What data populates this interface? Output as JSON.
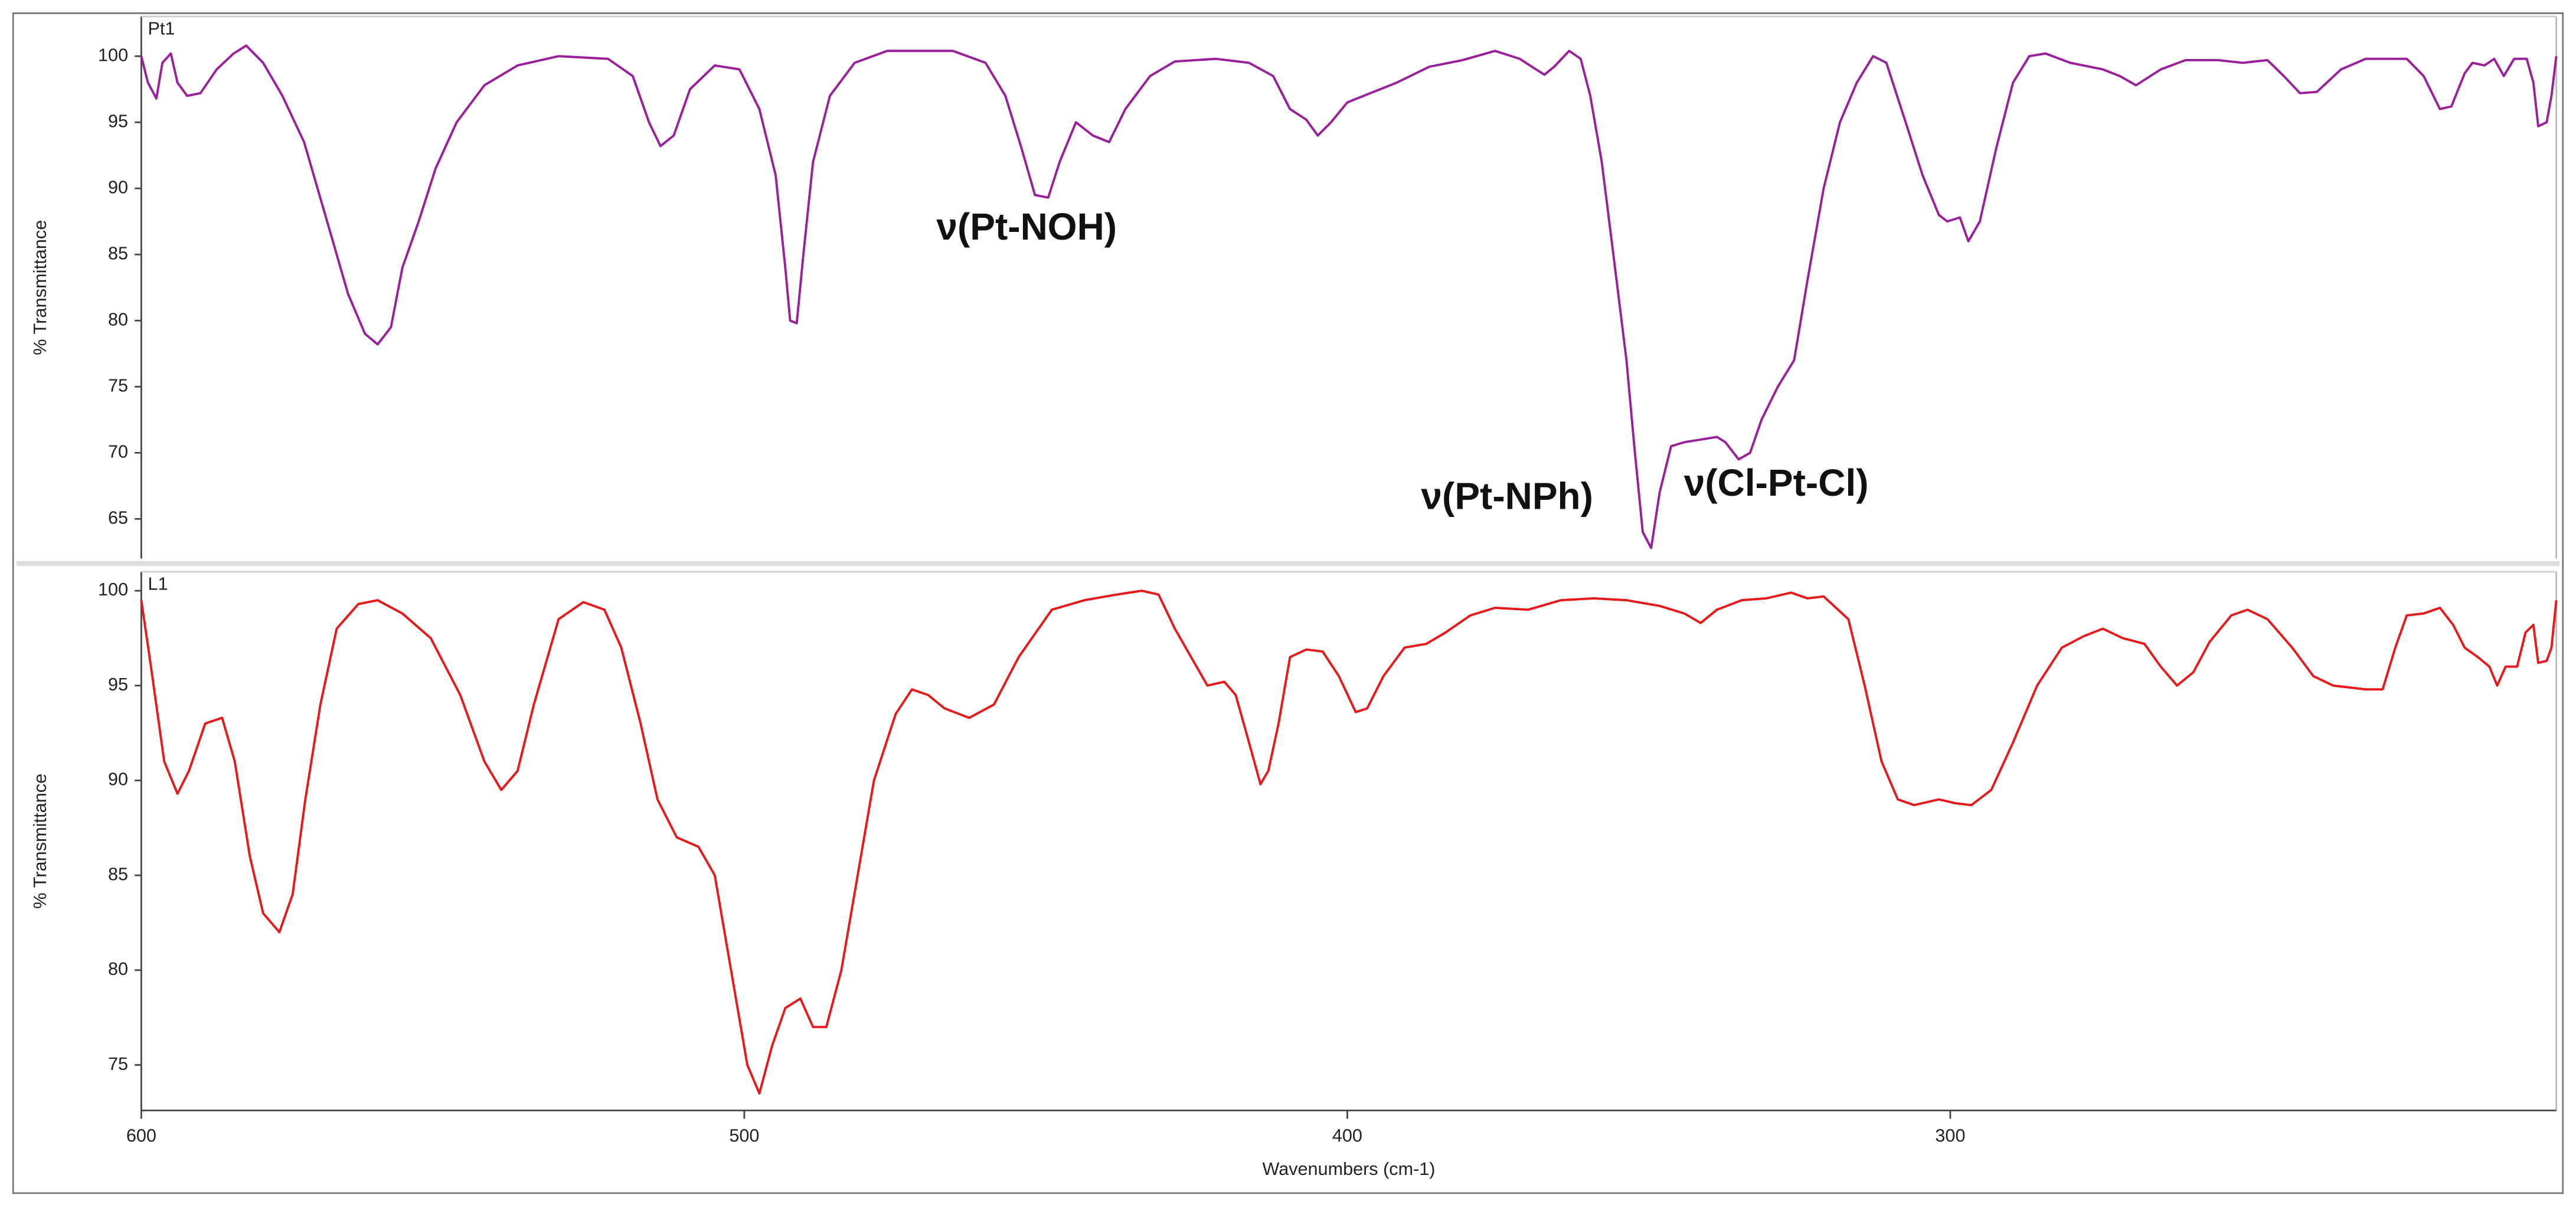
{
  "chart_data": [
    {
      "type": "line",
      "ylabel": "% Transmittance",
      "xlim": [
        600,
        199.5
      ],
      "ylim": [
        62,
        103
      ],
      "yticks": [
        65,
        70,
        75,
        80,
        85,
        90,
        95,
        100
      ],
      "annotations": [
        "ν(Pt-NOH)",
        "ν(Pt-NPh)",
        "ν(Cl-Pt-Cl)"
      ],
      "x": [
        600,
        598.9,
        597.5,
        596.5,
        595.1,
        594.0,
        592.4,
        590.2,
        587.5,
        584.7,
        582.6,
        579.8,
        576.6,
        573.0,
        569.5,
        565.7,
        562.9,
        560.8,
        558.6,
        556.7,
        554.0,
        551.2,
        547.7,
        543.1,
        537.6,
        530.8,
        522.6,
        518.5,
        515.8,
        513.9,
        511.7,
        509.0,
        504.9,
        500.8,
        497.5,
        494.8,
        493.2,
        492.4,
        491.3,
        490.2,
        488.6,
        485.8,
        481.7,
        476.3,
        465.4,
        460.0,
        456.7,
        454.0,
        451.8,
        449.6,
        447.7,
        445.0,
        442.2,
        439.5,
        436.8,
        432.7,
        428.6,
        421.8,
        416.3,
        412.3,
        409.5,
        406.8,
        404.9,
        402.7,
        400.0,
        397.3,
        391.8,
        386.4,
        380.9,
        375.5,
        371.4,
        368.7,
        367.3,
        365.7,
        363.2,
        361.3,
        359.7,
        357.8,
        355.6,
        353.7,
        352.3,
        351.0,
        349.6,
        348.2,
        346.3,
        344.1,
        341.4,
        338.7,
        337.3,
        335.1,
        333.2,
        331.3,
        328.6,
        325.9,
        323.7,
        321.0,
        318.3,
        315.5,
        312.8,
        310.6,
        307.4,
        304.6,
        301.9,
        300.5,
        298.4,
        297.0,
        295.1,
        292.4,
        289.6,
        286.9,
        284.2,
        280.1,
        274.7,
        271.9,
        269.2,
        265.1,
        261.0,
        255.6,
        251.5,
        247.4,
        244.7,
        242.0,
        239.2,
        235.2,
        231.1,
        224.3,
        221.5,
        218.8,
        216.9,
        214.7,
        213.4,
        211.4,
        209.8,
        208.2,
        206.5,
        204.4,
        203.3,
        202.5,
        201.1,
        200.3,
        199.5
      ],
      "series": [
        {
          "name": "Pt1",
          "color": "#9a1f9a",
          "values": [
            100,
            98,
            96.8,
            99.5,
            100.2,
            98,
            97,
            97.2,
            99,
            100.2,
            100.8,
            99.5,
            97,
            93.5,
            88,
            82,
            79,
            78.2,
            79.5,
            84,
            87.5,
            91.5,
            95,
            97.8,
            99.3,
            100,
            99.8,
            98.5,
            95,
            93.2,
            94,
            97.5,
            99.3,
            99,
            96,
            91,
            84,
            80,
            79.8,
            85,
            92,
            97,
            99.5,
            100.4,
            100.4,
            99.5,
            97,
            93,
            89.5,
            89.3,
            92,
            95,
            94,
            93.5,
            96,
            98.5,
            99.6,
            99.8,
            99.5,
            98.5,
            96,
            95.2,
            94,
            95,
            96.5,
            97,
            98,
            99.2,
            99.7,
            100.4,
            99.8,
            99,
            98.6,
            99.2,
            100.4,
            99.8,
            97,
            92,
            84,
            77,
            70,
            64,
            62.8,
            67,
            70.5,
            70.8,
            71,
            71.2,
            70.8,
            69.5,
            70,
            72.5,
            75,
            77,
            83,
            90,
            95,
            98,
            100,
            99.5,
            95,
            91,
            88,
            87.5,
            87.8,
            86,
            87.5,
            93,
            98,
            100,
            100.2,
            99.5,
            99,
            98.5,
            97.8,
            99,
            99.7,
            99.7,
            99.5,
            99.7,
            98.5,
            97.2,
            97.3,
            99,
            99.8,
            99.8,
            98.5,
            96,
            96.2,
            98.7,
            99.5,
            99.3,
            99.8,
            98.5,
            99.8,
            99.8,
            98,
            94.7,
            95,
            97,
            100
          ]
        }
      ]
    },
    {
      "type": "line",
      "ylabel": "% Transmittance",
      "xlabel": "Wavenumbers (cm-1)",
      "xlim": [
        600,
        199.5
      ],
      "ylim": [
        72.6,
        101
      ],
      "xticks": [
        600,
        500,
        400,
        300
      ],
      "yticks": [
        75,
        80,
        85,
        90,
        95,
        100
      ],
      "x": [
        600,
        598.4,
        596.2,
        594.0,
        592.1,
        589.4,
        586.6,
        584.5,
        582.0,
        579.8,
        577.1,
        574.9,
        572.8,
        570.3,
        567.6,
        564.0,
        560.8,
        556.7,
        552.0,
        547.1,
        543.1,
        540.3,
        537.6,
        534.9,
        530.8,
        526.7,
        523.2,
        520.4,
        517.2,
        514.4,
        511.2,
        507.6,
        504.9,
        502.2,
        499.5,
        497.5,
        495.4,
        493.2,
        490.7,
        488.6,
        486.4,
        483.9,
        481.2,
        478.5,
        474.9,
        472.2,
        469.5,
        466.8,
        462.7,
        458.6,
        454.5,
        449.0,
        443.6,
        438.2,
        434.1,
        431.3,
        428.6,
        425.9,
        423.2,
        420.4,
        418.5,
        416.3,
        414.4,
        413.1,
        411.4,
        409.5,
        406.8,
        404.1,
        401.4,
        398.6,
        396.7,
        394.0,
        390.5,
        386.9,
        383.7,
        379.6,
        375.5,
        370.0,
        364.6,
        359.1,
        353.7,
        348.2,
        344.1,
        341.4,
        338.7,
        334.6,
        330.5,
        326.4,
        323.7,
        321.0,
        316.9,
        314.2,
        311.4,
        308.7,
        306.0,
        301.9,
        299.2,
        296.5,
        293.2,
        289.6,
        285.6,
        281.5,
        277.9,
        274.7,
        271.4,
        267.8,
        265.1,
        262.4,
        259.7,
        257.0,
        253.4,
        250.7,
        247.4,
        243.3,
        239.8,
        236.5,
        231.1,
        228.3,
        226.2,
        224.3,
        221.5,
        218.8,
        216.6,
        214.7,
        212.5,
        210.6,
        209.3,
        207.9,
        206.0,
        204.6,
        203.3,
        202.5,
        201.1,
        200.3,
        199.5
      ],
      "series": [
        {
          "name": "L1",
          "color": "#e8191b",
          "values": [
            99.5,
            96,
            91,
            89.3,
            90.5,
            93,
            93.3,
            91,
            86,
            83,
            82,
            84,
            89,
            94,
            98,
            99.3,
            99.5,
            98.8,
            97.5,
            94.5,
            91,
            89.5,
            90.5,
            94,
            98.5,
            99.4,
            99,
            97,
            93,
            89,
            87,
            86.5,
            85,
            80,
            75,
            73.5,
            76,
            78,
            78.5,
            77,
            77,
            80,
            85,
            90,
            93.5,
            94.8,
            94.5,
            93.8,
            93.3,
            94,
            96.5,
            99,
            99.5,
            99.8,
            100,
            99.8,
            98,
            96.5,
            95,
            95.2,
            94.5,
            92,
            89.8,
            90.5,
            93,
            96.5,
            96.9,
            96.8,
            95.5,
            93.6,
            93.8,
            95.5,
            97,
            97.2,
            97.8,
            98.7,
            99.1,
            99,
            99.5,
            99.6,
            99.5,
            99.2,
            98.8,
            98.3,
            99,
            99.5,
            99.6,
            99.9,
            99.6,
            99.7,
            98.5,
            95,
            91,
            89,
            88.7,
            89,
            88.8,
            88.7,
            89.5,
            92,
            95,
            97,
            97.6,
            98,
            97.5,
            97.2,
            96,
            95,
            95.7,
            97.3,
            98.7,
            99,
            98.5,
            97,
            95.5,
            95,
            94.8,
            94.8,
            97,
            98.7,
            98.8,
            99.1,
            98.2,
            97,
            96.5,
            96,
            95,
            96,
            96,
            97.8,
            98.2,
            96.2,
            96.3,
            97,
            99.5
          ]
        }
      ]
    }
  ]
}
